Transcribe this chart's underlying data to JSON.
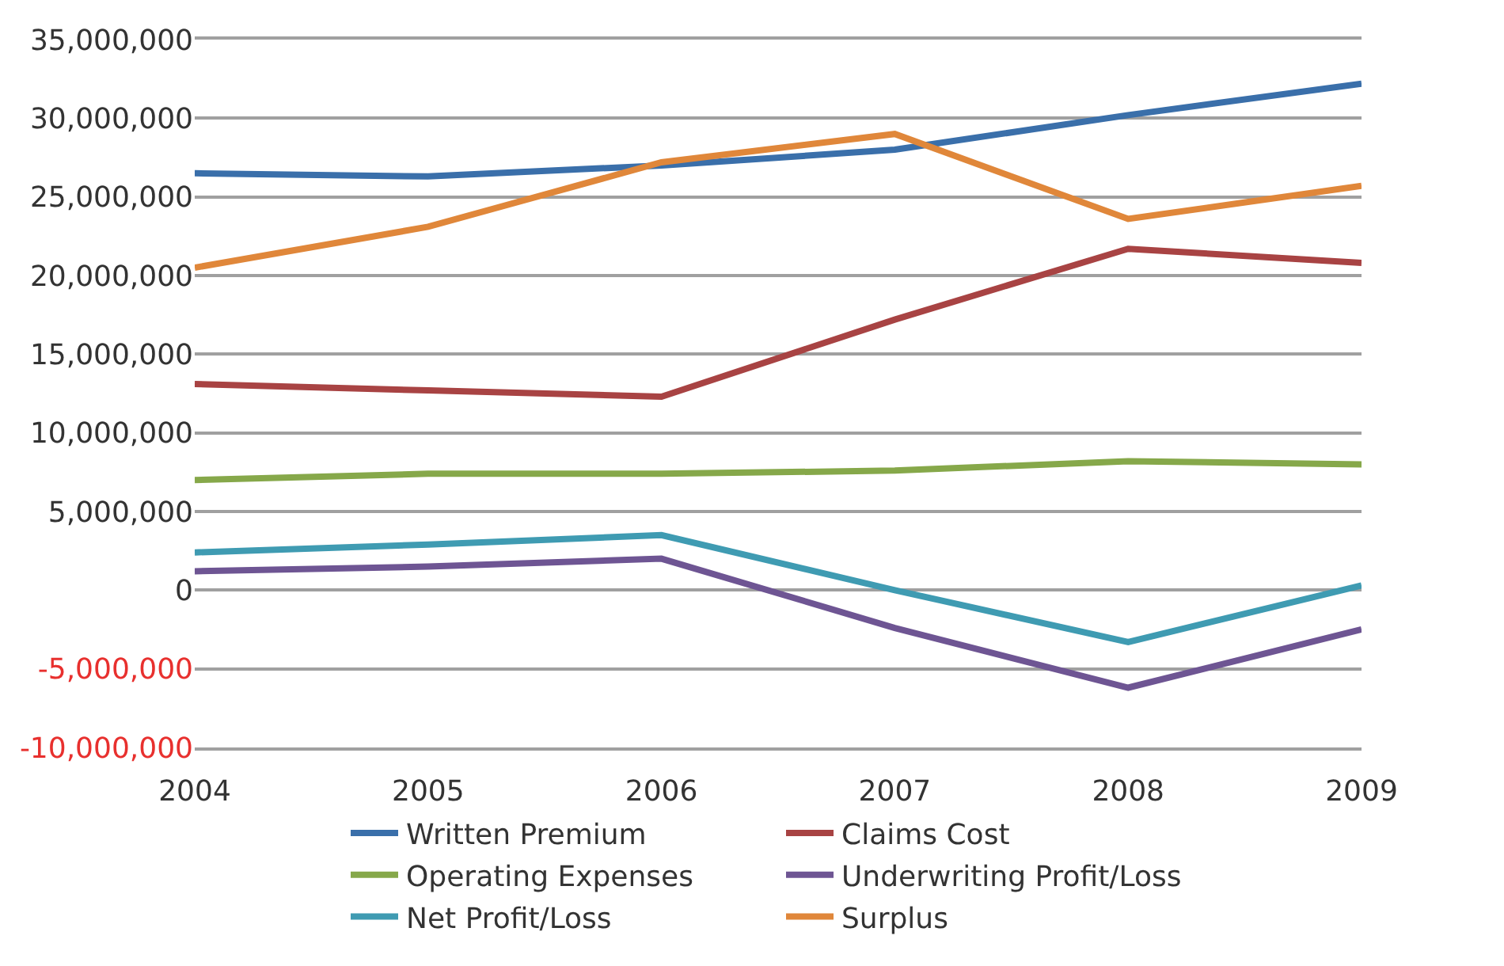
{
  "chart_data": {
    "type": "line",
    "x": [
      2004,
      2005,
      2006,
      2007,
      2008,
      2009
    ],
    "xlim": [
      2004,
      2009
    ],
    "xticks": [
      2004,
      2005,
      2006,
      2007,
      2008,
      2009
    ],
    "ylim": [
      -10000000,
      35000000
    ],
    "yticks": [
      {
        "value": -10000000,
        "label": "-10,000,000"
      },
      {
        "value": -5000000,
        "label": "-5,000,000"
      },
      0,
      {
        "value": 5000000,
        "label": "5,000,000"
      },
      {
        "value": 10000000,
        "label": "10,000,000"
      },
      {
        "value": 15000000,
        "label": "15,000,000"
      },
      {
        "value": 20000000,
        "label": "20,000,000"
      },
      {
        "value": 25000000,
        "label": "25,000,000"
      },
      {
        "value": 30000000,
        "label": "30,000,000"
      },
      {
        "value": 35000000,
        "label": "35,000,000"
      }
    ],
    "grid": "y",
    "legend": "bottom",
    "marker": "none",
    "line_style": "solid",
    "series": [
      {
        "name": "Written Premium",
        "color": "#3a6faa",
        "values": [
          26500000,
          26300000,
          27000000,
          28000000,
          30200000,
          32200000
        ]
      },
      {
        "name": "Claims Cost",
        "color": "#a84343",
        "values": [
          13100000,
          12700000,
          12300000,
          17200000,
          21700000,
          20800000
        ]
      },
      {
        "name": "Operating Expenses",
        "color": "#86a84a",
        "values": [
          7000000,
          7400000,
          7400000,
          7600000,
          8200000,
          8000000
        ]
      },
      {
        "name": "Underwriting Profit/Loss",
        "color": "#6e5593",
        "values": [
          1200000,
          1500000,
          2000000,
          -2400000,
          -6200000,
          -2500000
        ]
      },
      {
        "name": "Net Profit/Loss",
        "color": "#3f9bb2",
        "values": [
          2400000,
          2900000,
          3500000,
          0,
          -3300000,
          300000
        ]
      },
      {
        "name": "Surplus",
        "color": "#e0873a",
        "values": [
          20500000,
          23100000,
          27200000,
          29000000,
          23600000,
          25700000
        ]
      }
    ]
  }
}
